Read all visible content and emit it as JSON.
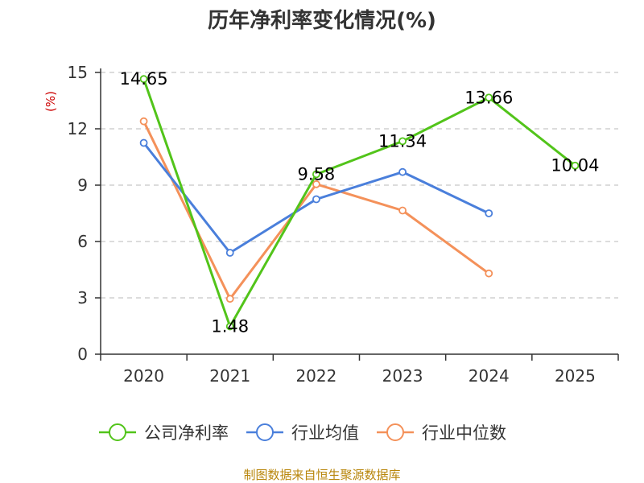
{
  "chart_data": {
    "type": "line",
    "title": "历年净利率变化情况(%)",
    "ylabel": "(%)",
    "categories": [
      "2020",
      "2021",
      "2022",
      "2023",
      "2024",
      "2025"
    ],
    "ylim": [
      0,
      15
    ],
    "yticks": [
      0,
      3,
      6,
      9,
      12,
      15
    ],
    "grid": true,
    "legend_position": "bottom",
    "series": [
      {
        "name": "公司净利率",
        "color": "#52c41a",
        "values": [
          14.65,
          1.48,
          9.58,
          11.34,
          13.66,
          10.04
        ],
        "labels": [
          "14.65",
          "1.48",
          "9.58",
          "11.34",
          "13.66",
          "10.04"
        ]
      },
      {
        "name": "行业均值",
        "color": "#4a7fdb",
        "values": [
          11.25,
          5.4,
          8.25,
          9.7,
          7.5,
          null
        ]
      },
      {
        "name": "行业中位数",
        "color": "#f4915a",
        "values": [
          12.4,
          2.95,
          9.05,
          7.65,
          4.3,
          null
        ]
      }
    ],
    "source": "制图数据来自恒生聚源数据库"
  }
}
